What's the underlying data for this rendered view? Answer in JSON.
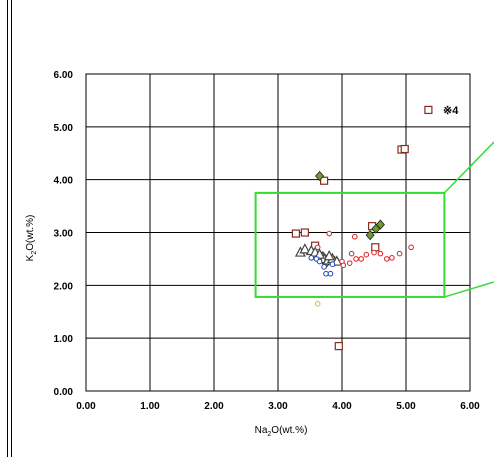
{
  "chart_data": {
    "type": "scatter",
    "xlabel_main": "Na",
    "xlabel_sub": "2",
    "xlabel_tail": "O(wt.%)",
    "ylabel_main": "K",
    "ylabel_sub": "2",
    "ylabel_tail": "O(wt.%)",
    "xlim": [
      0,
      6
    ],
    "ylim": [
      0,
      6
    ],
    "x_ticks": [
      "0.00",
      "1.00",
      "2.00",
      "3.00",
      "4.00",
      "5.00",
      "6.00"
    ],
    "y_ticks": [
      "0.00",
      "1.00",
      "2.00",
      "3.00",
      "4.00",
      "5.00",
      "6.00"
    ],
    "grid": true,
    "annotation": "※4",
    "zoom_box": {
      "x": [
        2.65,
        5.6
      ],
      "y": [
        1.78,
        3.75
      ],
      "color": "#33dd33"
    },
    "series": [
      {
        "marker": "square",
        "color": "#8b2a1a",
        "points": [
          [
            5.35,
            5.32
          ],
          [
            4.93,
            4.57
          ],
          [
            4.98,
            4.58
          ],
          [
            3.72,
            3.98
          ],
          [
            3.28,
            2.98
          ],
          [
            3.42,
            3.0
          ],
          [
            4.47,
            3.12
          ],
          [
            3.58,
            2.75
          ],
          [
            4.52,
            2.72
          ],
          [
            3.95,
            0.85
          ],
          [
            3.83,
            2.48
          ]
        ]
      },
      {
        "marker": "diamond",
        "color": "#6e9a2e",
        "points": [
          [
            3.65,
            4.07
          ],
          [
            4.6,
            3.15
          ],
          [
            4.53,
            3.07
          ],
          [
            4.44,
            2.95
          ],
          [
            3.7,
            2.55
          ],
          [
            3.8,
            2.48
          ],
          [
            3.88,
            2.45
          ],
          [
            3.75,
            2.42
          ]
        ]
      },
      {
        "marker": "triangle",
        "color": "#444444",
        "points": [
          [
            3.35,
            2.62
          ],
          [
            3.42,
            2.68
          ],
          [
            3.52,
            2.65
          ],
          [
            3.58,
            2.62
          ],
          [
            3.72,
            2.5
          ],
          [
            3.78,
            2.47
          ],
          [
            3.85,
            2.5
          ],
          [
            3.92,
            2.45
          ],
          [
            3.65,
            2.58
          ],
          [
            3.8,
            2.55
          ]
        ]
      },
      {
        "marker": "circle",
        "color": "#e02020",
        "points": [
          [
            3.8,
            2.98
          ],
          [
            4.2,
            2.92
          ],
          [
            4.15,
            2.6
          ],
          [
            4.22,
            2.5
          ],
          [
            4.3,
            2.5
          ],
          [
            4.0,
            2.45
          ],
          [
            4.02,
            2.38
          ],
          [
            4.38,
            2.58
          ],
          [
            4.5,
            2.62
          ],
          [
            4.6,
            2.6
          ],
          [
            4.7,
            2.5
          ],
          [
            4.78,
            2.52
          ],
          [
            4.9,
            2.6
          ],
          [
            5.08,
            2.72
          ],
          [
            4.12,
            2.42
          ],
          [
            3.62,
            2.72
          ]
        ]
      },
      {
        "marker": "circle",
        "color": "#2244bb",
        "points": [
          [
            3.52,
            2.52
          ],
          [
            3.6,
            2.5
          ],
          [
            3.72,
            2.35
          ],
          [
            3.75,
            2.22
          ],
          [
            3.82,
            2.22
          ],
          [
            3.85,
            2.4
          ],
          [
            3.65,
            2.45
          ]
        ]
      },
      {
        "marker": "circle",
        "color": "#f0b020",
        "points": [
          [
            3.62,
            1.65
          ]
        ]
      }
    ]
  }
}
